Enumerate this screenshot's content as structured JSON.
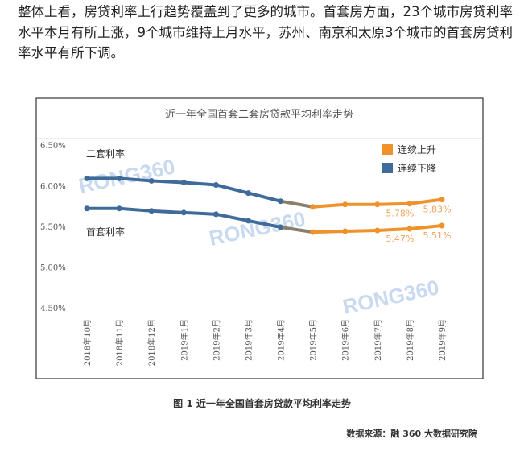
{
  "article": {
    "lines": [
      "整体上看，房贷利率上行趋势覆盖到了更多的城市。首套房方面，23个城市房贷利率",
      "水平本月有所上涨，9个城市维持上月水平，苏州、南京和太原3个城市的首套房贷利",
      "率水平有所下调。"
    ]
  },
  "chart_data": {
    "type": "line",
    "title": "近一年全国首套二套房贷款平均利率走势",
    "categories": [
      "2018年10月",
      "2018年11月",
      "2018年12月",
      "2019年1月",
      "2019年2月",
      "2019年3月",
      "2019年4月",
      "2019年5月",
      "2019年6月",
      "2019年7月",
      "2019年8月",
      "2019年9月"
    ],
    "series": [
      {
        "name": "二套利率",
        "values": [
          6.09,
          6.09,
          6.06,
          6.04,
          6.01,
          5.91,
          5.81,
          5.74,
          5.77,
          5.77,
          5.78,
          5.83
        ]
      },
      {
        "name": "首套利率",
        "values": [
          5.72,
          5.72,
          5.69,
          5.67,
          5.65,
          5.57,
          5.49,
          5.43,
          5.44,
          5.45,
          5.47,
          5.51
        ]
      }
    ],
    "data_labels": [
      {
        "series": 0,
        "index": 10,
        "text": "5.78%"
      },
      {
        "series": 0,
        "index": 11,
        "text": "5.83%"
      },
      {
        "series": 1,
        "index": 10,
        "text": "5.47%"
      },
      {
        "series": 1,
        "index": 11,
        "text": "5.51%"
      }
    ],
    "yticks": [
      "6.50%",
      "6.00%",
      "5.50%",
      "5.00%",
      "4.50%"
    ],
    "ylim": [
      4.5,
      6.5
    ],
    "legend": [
      {
        "label": "连续上升",
        "color": "#f0922b"
      },
      {
        "label": "连续下降",
        "color": "#3f6b9a"
      }
    ],
    "legend_placement": "top-right",
    "rising_from_index": 7,
    "watermark": "RONG360",
    "grid": false
  },
  "figure": {
    "caption": "图 1  近一年全国首套房贷款平均利率走势",
    "source": "数据来源：融 360 大数据研究院"
  }
}
